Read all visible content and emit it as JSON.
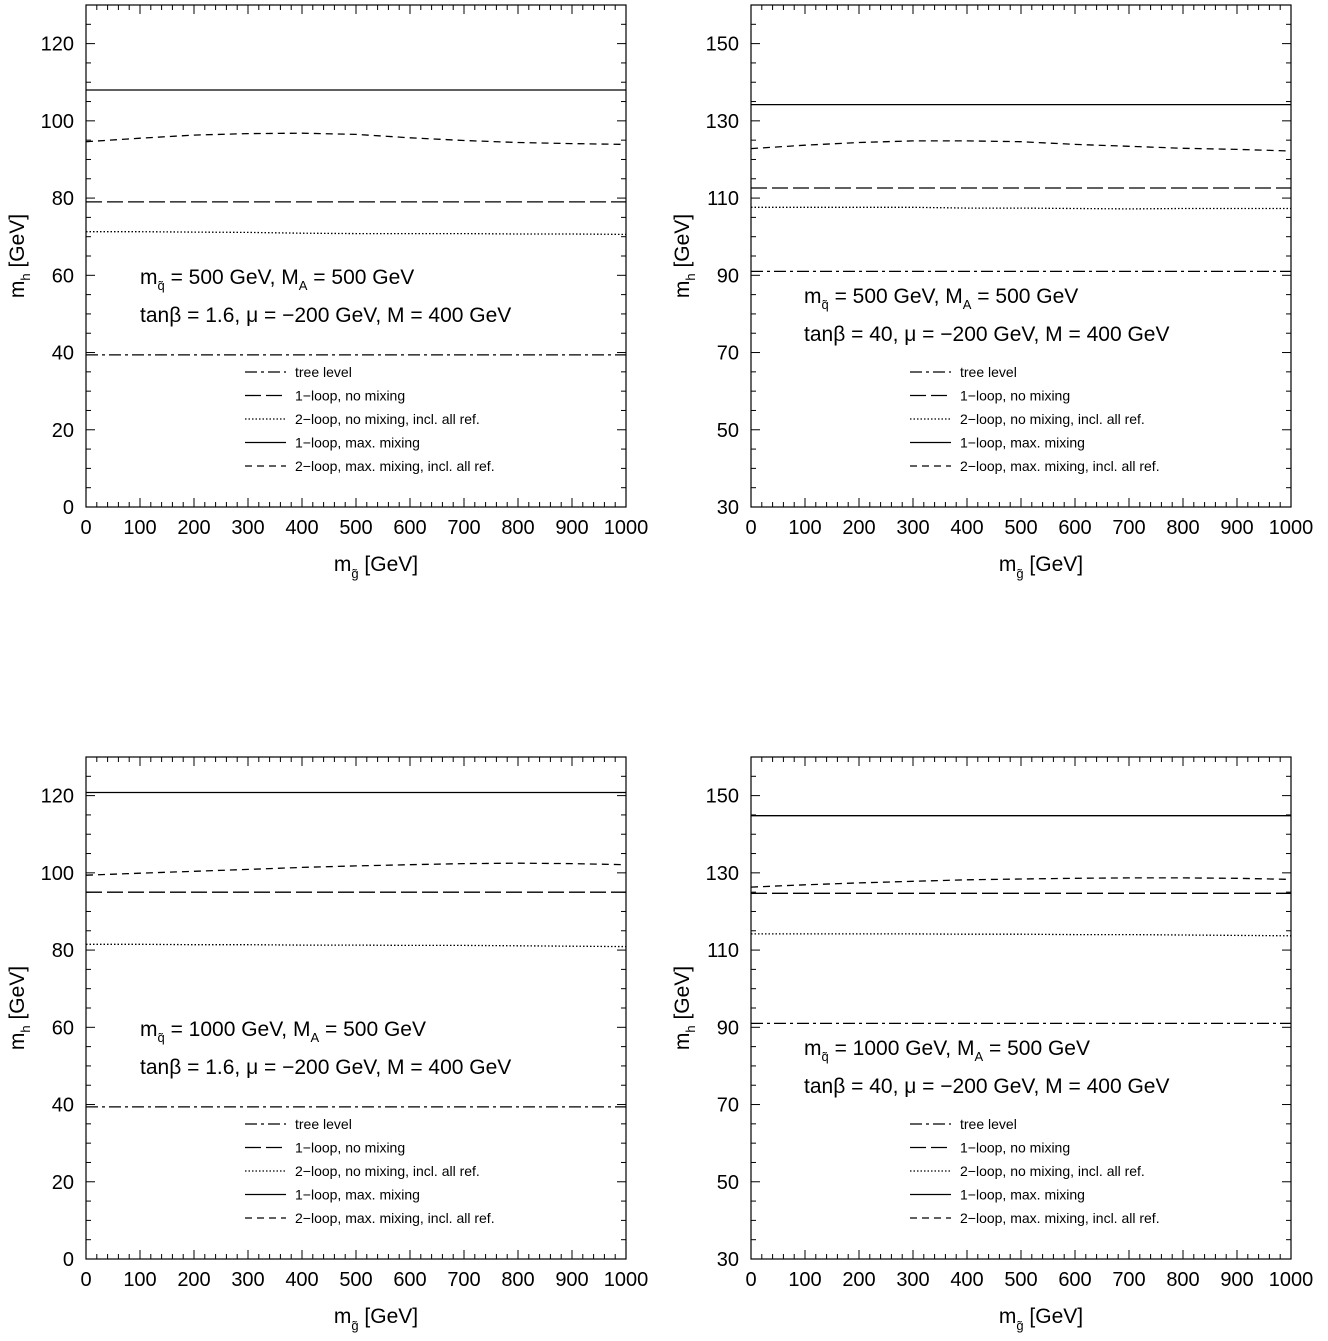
{
  "chart_data": [
    {
      "type": "line",
      "xlim": [
        0,
        1000
      ],
      "ylim": [
        0,
        130
      ],
      "xticks": [
        0,
        100,
        200,
        300,
        400,
        500,
        600,
        700,
        800,
        900,
        1000
      ],
      "yticks": [
        0,
        20,
        40,
        60,
        80,
        100,
        120
      ],
      "xlabel": {
        "main": "m",
        "sub": "g̃",
        "unit": " [GeV]"
      },
      "ylabel": {
        "main": "m",
        "sub": "h",
        "unit": " [GeV]"
      },
      "annotation": {
        "line1": {
          "m": "m",
          "msub": "q̃",
          "mval": " = 500 GeV, M",
          "Asub": "A",
          "Aval": " = 500 GeV"
        },
        "line2": "tanβ = 1.6, μ = −200 GeV, M = 400 GeV"
      },
      "legend_position": "bottom-center",
      "series": [
        {
          "name": "tree level",
          "style": "dashdot",
          "x": [
            0,
            1000
          ],
          "y": [
            39.4,
            39.4
          ]
        },
        {
          "name": "1−loop, no mixing",
          "style": "longdash",
          "x": [
            0,
            1000
          ],
          "y": [
            79,
            79
          ]
        },
        {
          "name": "2−loop, no mixing, incl. all ref.",
          "style": "dotted",
          "x": [
            0,
            100,
            200,
            300,
            400,
            500,
            600,
            700,
            800,
            900,
            1000
          ],
          "y": [
            71.3,
            71.3,
            71.2,
            71.1,
            70.9,
            70.8,
            70.8,
            70.8,
            70.7,
            70.7,
            70.6
          ]
        },
        {
          "name": "1−loop, max. mixing",
          "style": "solid",
          "x": [
            0,
            1000
          ],
          "y": [
            108,
            108
          ]
        },
        {
          "name": "2−loop, max. mixing, incl. all ref.",
          "style": "dashed",
          "x": [
            0,
            100,
            200,
            300,
            400,
            500,
            600,
            700,
            800,
            900,
            1000
          ],
          "y": [
            94.6,
            95.5,
            96.3,
            96.7,
            96.8,
            96.5,
            95.6,
            94.9,
            94.4,
            94.1,
            93.9
          ]
        }
      ]
    },
    {
      "type": "line",
      "xlim": [
        0,
        1000
      ],
      "ylim": [
        30,
        160
      ],
      "xticks": [
        0,
        100,
        200,
        300,
        400,
        500,
        600,
        700,
        800,
        900,
        1000
      ],
      "yticks": [
        30,
        50,
        70,
        90,
        110,
        130,
        150
      ],
      "xlabel": {
        "main": "m",
        "sub": "g̃",
        "unit": " [GeV]"
      },
      "ylabel": {
        "main": "m",
        "sub": "h",
        "unit": " [GeV]"
      },
      "annotation": {
        "line1": {
          "m": "m",
          "msub": "q̃",
          "mval": " = 500 GeV, M",
          "Asub": "A",
          "Aval": " = 500 GeV"
        },
        "line2": "tanβ = 40, μ = −200 GeV, M = 400 GeV"
      },
      "legend_position": "bottom-center",
      "series": [
        {
          "name": "tree level",
          "style": "dashdot",
          "x": [
            0,
            1000
          ],
          "y": [
            91,
            91
          ]
        },
        {
          "name": "1−loop, no mixing",
          "style": "longdash",
          "x": [
            0,
            1000
          ],
          "y": [
            112.6,
            112.6
          ]
        },
        {
          "name": "2−loop, no mixing, incl. all ref.",
          "style": "dotted",
          "x": [
            0,
            100,
            200,
            300,
            400,
            500,
            600,
            700,
            800,
            900,
            1000
          ],
          "y": [
            107.6,
            107.6,
            107.6,
            107.6,
            107.4,
            107.4,
            107.3,
            107.2,
            107.3,
            107.3,
            107.3
          ]
        },
        {
          "name": "1−loop, max. mixing",
          "style": "solid",
          "x": [
            0,
            1000
          ],
          "y": [
            134.2,
            134.2
          ]
        },
        {
          "name": "2−loop, max. mixing, incl. all ref.",
          "style": "dashed",
          "x": [
            0,
            100,
            200,
            300,
            400,
            500,
            600,
            700,
            800,
            900,
            1000
          ],
          "y": [
            122.8,
            123.7,
            124.4,
            124.8,
            124.8,
            124.6,
            123.9,
            123.4,
            122.9,
            122.6,
            122.2
          ]
        }
      ]
    },
    {
      "type": "line",
      "xlim": [
        0,
        1000
      ],
      "ylim": [
        0,
        130
      ],
      "xticks": [
        0,
        100,
        200,
        300,
        400,
        500,
        600,
        700,
        800,
        900,
        1000
      ],
      "yticks": [
        0,
        20,
        40,
        60,
        80,
        100,
        120
      ],
      "xlabel": {
        "main": "m",
        "sub": "g̃",
        "unit": " [GeV]"
      },
      "ylabel": {
        "main": "m",
        "sub": "h",
        "unit": " [GeV]"
      },
      "annotation": {
        "line1": {
          "m": "m",
          "msub": "q̃",
          "mval": " = 1000 GeV, M",
          "Asub": "A",
          "Aval": " = 500 GeV"
        },
        "line2": "tanβ = 1.6, μ = −200 GeV, M = 400 GeV"
      },
      "legend_position": "bottom-center",
      "series": [
        {
          "name": "tree level",
          "style": "dashdot",
          "x": [
            0,
            1000
          ],
          "y": [
            39.4,
            39.4
          ]
        },
        {
          "name": "1−loop, no mixing",
          "style": "longdash",
          "x": [
            0,
            1000
          ],
          "y": [
            95,
            95
          ]
        },
        {
          "name": "2−loop, no mixing, incl. all ref.",
          "style": "dotted",
          "x": [
            0,
            100,
            200,
            300,
            400,
            500,
            600,
            700,
            800,
            900,
            1000
          ],
          "y": [
            81.5,
            81.5,
            81.4,
            81.4,
            81.3,
            81.3,
            81.2,
            81.2,
            81.1,
            81.0,
            80.9
          ]
        },
        {
          "name": "1−loop, max. mixing",
          "style": "solid",
          "x": [
            0,
            1000
          ],
          "y": [
            120.8,
            120.8
          ]
        },
        {
          "name": "2−loop, max. mixing, incl. all ref.",
          "style": "dashed",
          "x": [
            0,
            100,
            200,
            300,
            400,
            500,
            600,
            700,
            800,
            900,
            1000
          ],
          "y": [
            99.4,
            99.9,
            100.4,
            100.9,
            101.4,
            101.8,
            102.1,
            102.4,
            102.5,
            102.4,
            102.1
          ]
        }
      ]
    },
    {
      "type": "line",
      "xlim": [
        0,
        1000
      ],
      "ylim": [
        30,
        160
      ],
      "xticks": [
        0,
        100,
        200,
        300,
        400,
        500,
        600,
        700,
        800,
        900,
        1000
      ],
      "yticks": [
        30,
        50,
        70,
        90,
        110,
        130,
        150
      ],
      "xlabel": {
        "main": "m",
        "sub": "g̃",
        "unit": " [GeV]"
      },
      "ylabel": {
        "main": "m",
        "sub": "h",
        "unit": " [GeV]"
      },
      "annotation": {
        "line1": {
          "m": "m",
          "msub": "q̃",
          "mval": " = 1000 GeV, M",
          "Asub": "A",
          "Aval": " = 500 GeV"
        },
        "line2": "tanβ = 40, μ = −200 GeV, M = 400 GeV"
      },
      "legend_position": "bottom-center",
      "series": [
        {
          "name": "tree level",
          "style": "dashdot",
          "x": [
            0,
            1000
          ],
          "y": [
            91,
            91
          ]
        },
        {
          "name": "1−loop, no mixing",
          "style": "longdash",
          "x": [
            0,
            1000
          ],
          "y": [
            124.7,
            124.7
          ]
        },
        {
          "name": "2−loop, no mixing, incl. all ref.",
          "style": "dotted",
          "x": [
            0,
            100,
            200,
            300,
            400,
            500,
            600,
            700,
            800,
            900,
            1000
          ],
          "y": [
            114.2,
            114.2,
            114.2,
            114.2,
            114.1,
            114.1,
            114.0,
            114.0,
            113.9,
            113.8,
            113.7
          ]
        },
        {
          "name": "1−loop, max. mixing",
          "style": "solid",
          "x": [
            0,
            1000
          ],
          "y": [
            144.8,
            144.8
          ]
        },
        {
          "name": "2−loop, max. mixing, incl. all ref.",
          "style": "dashed",
          "x": [
            0,
            100,
            200,
            300,
            400,
            500,
            600,
            700,
            800,
            900,
            1000
          ],
          "y": [
            126.3,
            126.9,
            127.4,
            127.8,
            128.2,
            128.4,
            128.6,
            128.7,
            128.7,
            128.6,
            128.3
          ]
        }
      ]
    }
  ]
}
